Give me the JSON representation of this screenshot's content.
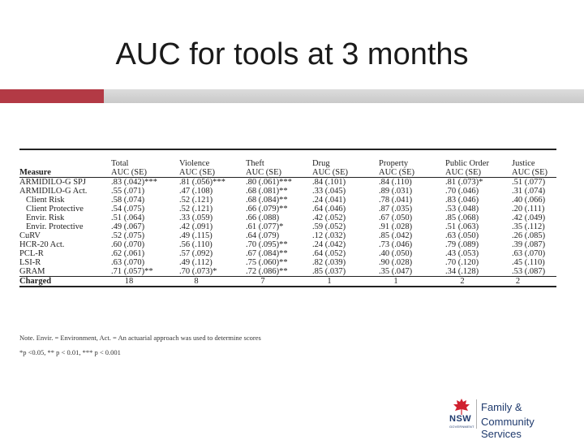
{
  "title": "AUC for tools at 3 months",
  "table": {
    "measure_header": "Measure",
    "columns": [
      {
        "name": "Total",
        "sub": "AUC (SE)"
      },
      {
        "name": "Violence",
        "sub": "AUC (SE)"
      },
      {
        "name": "Theft",
        "sub": "AUC (SE)"
      },
      {
        "name": "Drug",
        "sub": "AUC (SE)"
      },
      {
        "name": "Property",
        "sub": "AUC (SE)"
      },
      {
        "name": "Public Order",
        "sub": "AUC (SE)"
      },
      {
        "name": "Justice",
        "sub": "AUC (SE)"
      }
    ],
    "rows": [
      {
        "measure": "ARMIDILO-G SPJ",
        "values": [
          ".83 (.042)***",
          ".81 (.056)***",
          ".80 (.061)***",
          ".84 (.101)",
          ".84 (.110)",
          ".81 (.073)*",
          ".51 (.077)"
        ]
      },
      {
        "measure": "ARMIDILO-G Act.",
        "values": [
          ".55 (.071)",
          ".47 (.108)",
          ".68 (.081)**",
          ".33 (.045)",
          ".89 (.031)",
          ".70 (.046)",
          ".31 (.074)"
        ]
      },
      {
        "measure": "Client Risk",
        "values": [
          ".58 (.074)",
          ".52 (.121)",
          ".68 (.084)**",
          ".24 (.041)",
          ".78 (.041)",
          ".83 (.046)",
          ".40 (.066)"
        ]
      },
      {
        "measure": "Client Protective",
        "values": [
          ".54 (.075)",
          ".52 (.121)",
          ".66 (.079)**",
          ".64 (.046)",
          ".87 (.035)",
          ".53 (.048)",
          ".20 (.111)"
        ]
      },
      {
        "measure": "Envir. Risk",
        "values": [
          ".51 (.064)",
          ".33 (.059)",
          ".66 (.088)",
          ".42 (.052)",
          ".67 (.050)",
          ".85 (.068)",
          ".42 (.049)"
        ]
      },
      {
        "measure": "Envir. Protective",
        "values": [
          ".49 (.067)",
          ".42 (.091)",
          ".61 (.077)*",
          ".59 (.052)",
          ".91 (.028)",
          ".51 (.063)",
          ".35 (.112)"
        ]
      },
      {
        "measure": "CuRV",
        "values": [
          ".52 (.075)",
          ".49 (.115)",
          ".64 (.079)",
          ".12 (.032)",
          ".85 (.042)",
          ".63 (.050)",
          ".26 (.085)"
        ]
      },
      {
        "measure": "HCR-20 Act.",
        "values": [
          ".60 (.070)",
          ".56 (.110)",
          ".70 (.095)**",
          ".24 (.042)",
          ".73 (.046)",
          ".79 (.089)",
          ".39 (.087)"
        ]
      },
      {
        "measure": "PCL-R",
        "values": [
          ".62 (.061)",
          ".57 (.092)",
          ".67 (.084)**",
          ".64 (.052)",
          ".40 (.050)",
          ".43 (.053)",
          ".63 (.070)"
        ]
      },
      {
        "measure": "LSI-R",
        "values": [
          ".63 (.070)",
          ".49 (.112)",
          ".75 (.060)**",
          ".82 (.039)",
          ".90 (.028)",
          ".70 (.120)",
          ".45 (.110)"
        ]
      },
      {
        "measure": "GRAM",
        "values": [
          ".71 (.057)**",
          ".70 (.073)*",
          ".72 (.086)**",
          ".85 (.037)",
          ".35 (.047)",
          ".34 (.128)",
          ".53 (.087)"
        ]
      }
    ],
    "charged": {
      "label": "Charged",
      "values": [
        "18",
        "8",
        "7",
        "1",
        "1",
        "2",
        "2"
      ]
    }
  },
  "notes": {
    "line1": "Note. Envir. = Environment, Act. = An actuarial approach was used to determine scores",
    "line2": "*p <0.05, ** p < 0.01, *** p < 0.001"
  },
  "logo": {
    "nsw": "NSW",
    "government": "GOVERNMENT",
    "line1": "Family &",
    "line2": "Community Services",
    "colors": {
      "red": "#d0202e",
      "navy": "#1f3a6d"
    }
  },
  "colors": {
    "accent_bar": "#b33a45",
    "grey_bar": "#cfcfcf"
  }
}
